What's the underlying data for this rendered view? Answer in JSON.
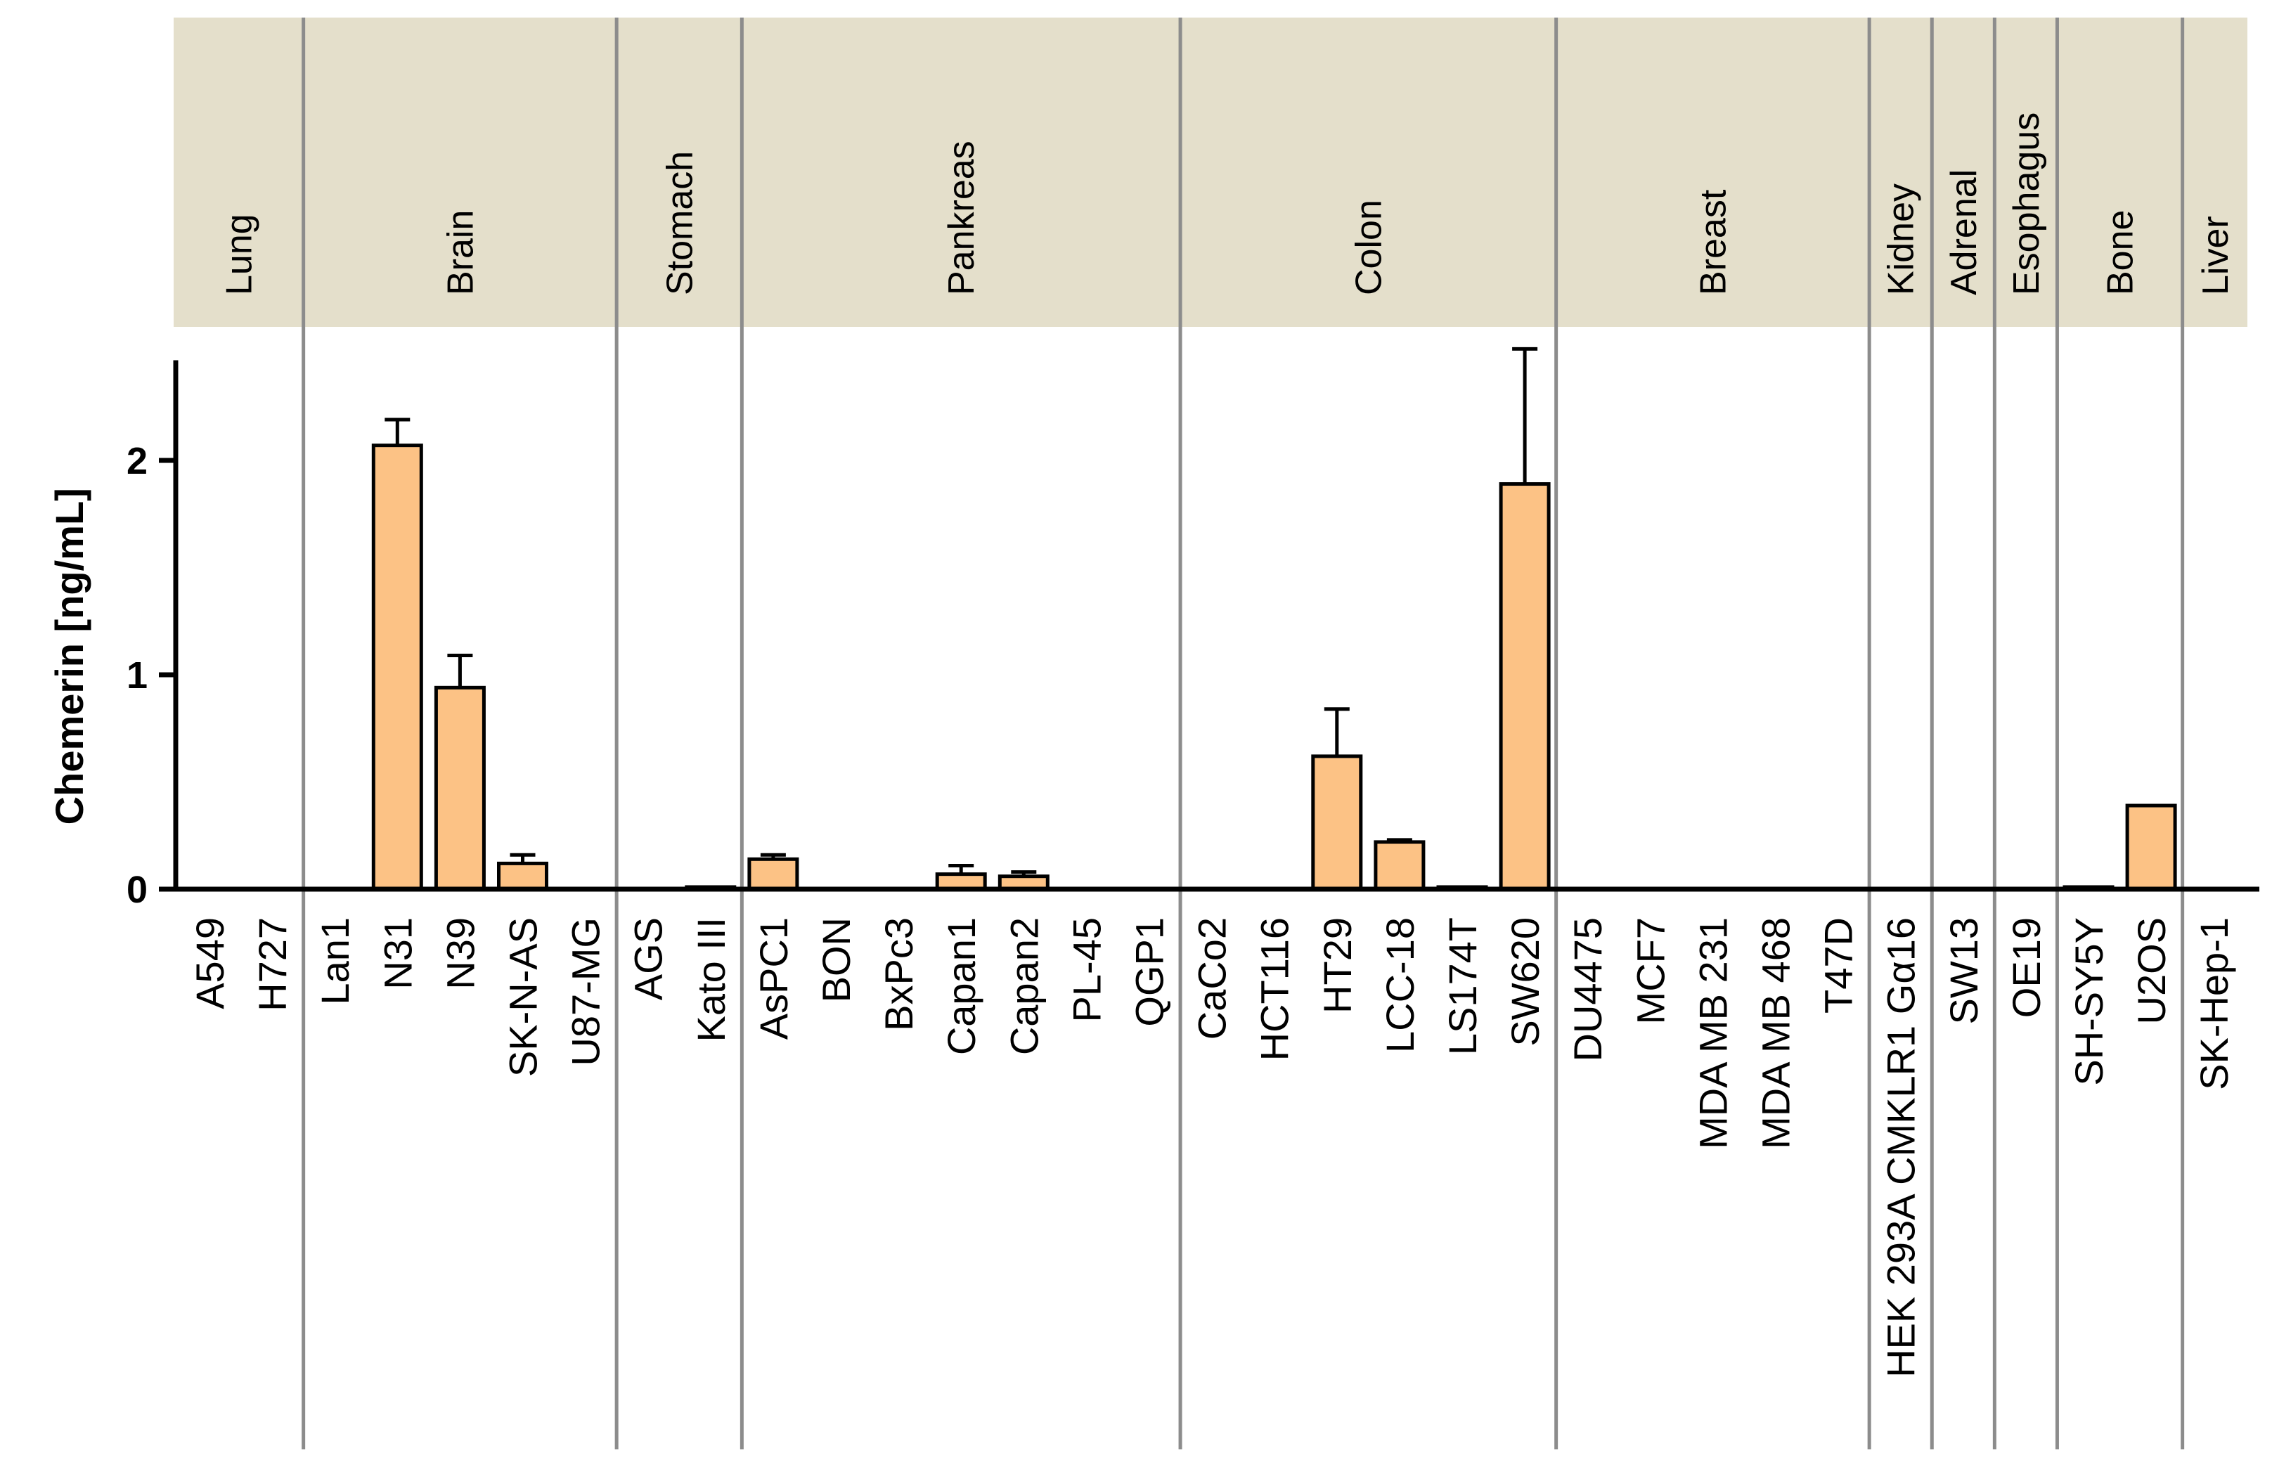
{
  "colors": {
    "bar_fill": "#fcc285",
    "bar_stroke": "#000000",
    "header_band": "#e4dfcb",
    "separator": "#8c8c8c",
    "axis": "#000000"
  },
  "chart_data": {
    "type": "bar",
    "title": "",
    "xlabel": "",
    "ylabel": "Chemerin [ng/mL]",
    "ylim": [
      0,
      2.5
    ],
    "yticks": [
      "0",
      "1",
      "2"
    ],
    "groups": [
      {
        "name": "Lung",
        "categories": [
          "A549",
          "H727"
        ]
      },
      {
        "name": "Brain",
        "categories": [
          "Lan1",
          "N31",
          "N39",
          "SK-N-AS",
          "U87-MG"
        ]
      },
      {
        "name": "Stomach",
        "categories": [
          "AGS",
          "Kato III"
        ]
      },
      {
        "name": "Pankreas",
        "categories": [
          "AsPC1",
          "BON",
          "BxPc3",
          "Capan1",
          "Capan2",
          "PL-45",
          "QGP1"
        ]
      },
      {
        "name": "Colon",
        "categories": [
          "CaCo2",
          "HCT116",
          "HT29",
          "LCC-18",
          "LS174T",
          "SW620"
        ]
      },
      {
        "name": "Breast",
        "categories": [
          "DU4475",
          "MCF7",
          "MDA MB 231",
          "MDA MB 468",
          "T47D"
        ]
      },
      {
        "name": "Kidney",
        "categories": [
          "HEK 293A CMKLR1 Gα16"
        ]
      },
      {
        "name": "Adrenal",
        "categories": [
          "SW13"
        ]
      },
      {
        "name": "Esophagus",
        "categories": [
          "OE19"
        ]
      },
      {
        "name": "Bone",
        "categories": [
          "SH-SY5Y",
          "U2OS"
        ]
      },
      {
        "name": "Liver",
        "categories": [
          "SK-Hep-1"
        ]
      }
    ],
    "categories": [
      "A549",
      "H727",
      "Lan1",
      "N31",
      "N39",
      "SK-N-AS",
      "U87-MG",
      "AGS",
      "Kato III",
      "AsPC1",
      "BON",
      "BxPc3",
      "Capan1",
      "Capan2",
      "PL-45",
      "QGP1",
      "CaCo2",
      "HCT116",
      "HT29",
      "LCC-18",
      "LS174T",
      "SW620",
      "DU4475",
      "MCF7",
      "MDA MB 231",
      "MDA MB 468",
      "T47D",
      "HEK 293A CMKLR1 Gα16",
      "SW13",
      "OE19",
      "SH-SY5Y",
      "U2OS",
      "SK-Hep-1"
    ],
    "series": [
      {
        "name": "Chemerin",
        "values": [
          0,
          0,
          0,
          2.07,
          0.94,
          0.12,
          0,
          0,
          0.01,
          0.14,
          0,
          0,
          0.07,
          0.06,
          0,
          0,
          0,
          0,
          0.62,
          0.22,
          0.01,
          1.89,
          0,
          0,
          0,
          0,
          0,
          0,
          0,
          0,
          0.01,
          0.39,
          0
        ],
        "errors": [
          0,
          0,
          0,
          0.12,
          0.15,
          0.04,
          0,
          0,
          0,
          0.02,
          0,
          0,
          0.04,
          0.02,
          0,
          0,
          0,
          0,
          0.22,
          0.01,
          0,
          0.63,
          0,
          0,
          0,
          0,
          0,
          0,
          0,
          0,
          0,
          0,
          0
        ]
      }
    ]
  }
}
